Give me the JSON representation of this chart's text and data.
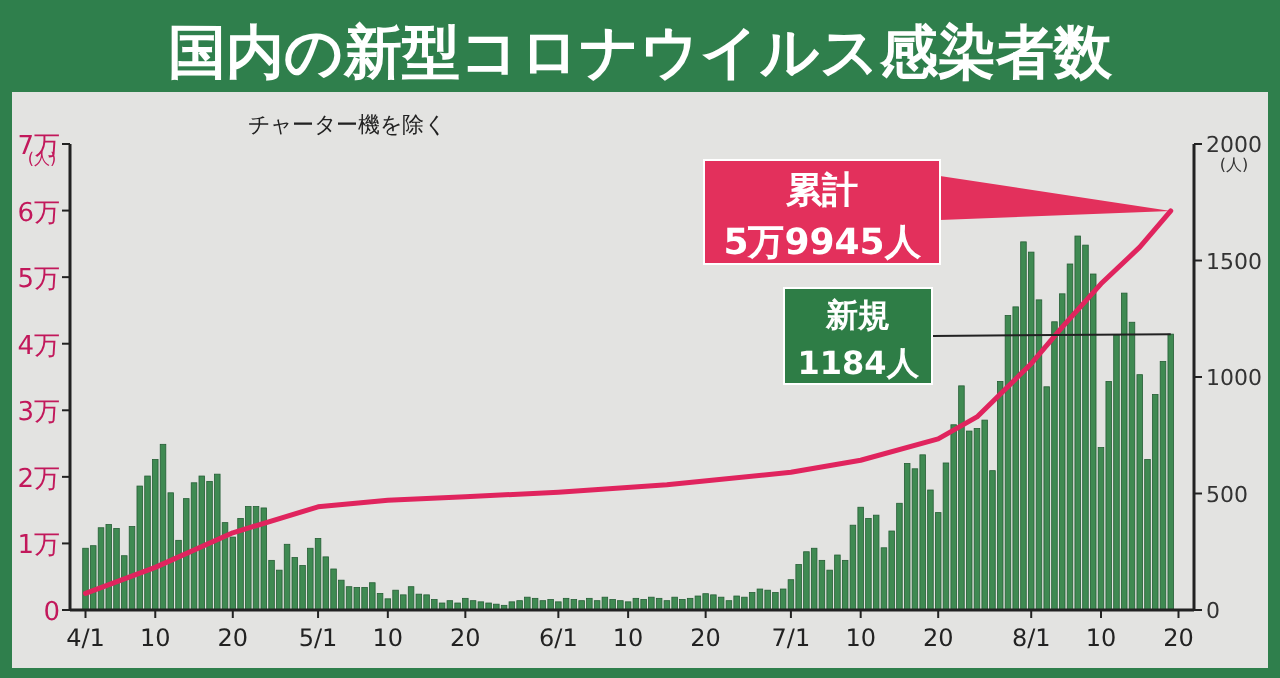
{
  "chart_data": {
    "type": "bar",
    "title": "国内の新型コロナウイルス感染者数",
    "subtitle": "チャーター機を除く",
    "ylabel": "(人)",
    "y2label": "(人)",
    "x": [
      "--04-01",
      "--04-02",
      "--04-03",
      "--04-04",
      "--04-05",
      "--04-06",
      "--04-07",
      "--04-08",
      "--04-09",
      "--04-10",
      "--04-11",
      "--04-12",
      "--04-13",
      "--04-14",
      "--04-15",
      "--04-16",
      "--04-17",
      "--04-18",
      "--04-19",
      "--04-20",
      "--04-21",
      "--04-22",
      "--04-23",
      "--04-24",
      "--04-25",
      "--04-26",
      "--04-27",
      "--04-28",
      "--04-29",
      "--04-30",
      "--05-01",
      "--05-02",
      "--05-03",
      "--05-04",
      "--05-05",
      "--05-06",
      "--05-07",
      "--05-08",
      "--05-09",
      "--05-10",
      "--05-11",
      "--05-12",
      "--05-13",
      "--05-14",
      "--05-15",
      "--05-16",
      "--05-17",
      "--05-18",
      "--05-19",
      "--05-20",
      "--05-21",
      "--05-22",
      "--05-23",
      "--05-24",
      "--05-25",
      "--05-26",
      "--05-27",
      "--05-28",
      "--05-29",
      "--05-30",
      "--05-31",
      "--06-01",
      "--06-02",
      "--06-03",
      "--06-04",
      "--06-05",
      "--06-06",
      "--06-07",
      "--06-08",
      "--06-09",
      "--06-10",
      "--06-11",
      "--06-12",
      "--06-13",
      "--06-14",
      "--06-15",
      "--06-16",
      "--06-17",
      "--06-18",
      "--06-19",
      "--06-20",
      "--06-21",
      "--06-22",
      "--06-23",
      "--06-24",
      "--06-25",
      "--06-26",
      "--06-27",
      "--06-28",
      "--06-29",
      "--06-30",
      "--07-01",
      "--07-02",
      "--07-03",
      "--07-04",
      "--07-05",
      "--07-06",
      "--07-07",
      "--07-08",
      "--07-09",
      "--07-10",
      "--07-11",
      "--07-12",
      "--07-13",
      "--07-14",
      "--07-15",
      "--07-16",
      "--07-17",
      "--07-18",
      "--07-19",
      "--07-20",
      "--07-21",
      "--07-22",
      "--07-23",
      "--07-24",
      "--07-25",
      "--07-26",
      "--07-27",
      "--07-28",
      "--07-29",
      "--07-30",
      "--07-31",
      "--08-01",
      "--08-02",
      "--08-03",
      "--08-04",
      "--08-05",
      "--08-06",
      "--08-07",
      "--08-08",
      "--08-09",
      "--08-10",
      "--08-11",
      "--08-12",
      "--08-13",
      "--08-14",
      "--08-15",
      "--08-16",
      "--08-17",
      "--08-18",
      "--08-19"
    ],
    "series": [
      {
        "axis": "y2",
        "color": "#3f8a52",
        "values": [
          265,
          276,
          353,
          367,
          350,
          233,
          358,
          532,
          575,
          646,
          711,
          503,
          299,
          478,
          546,
          575,
          552,
          583,
          375,
          313,
          393,
          444,
          444,
          438,
          213,
          171,
          282,
          225,
          191,
          265,
          307,
          228,
          176,
          128,
          100,
          97,
          97,
          117,
          71,
          48,
          85,
          65,
          100,
          68,
          65,
          45,
          30,
          40,
          30,
          50,
          40,
          35,
          30,
          25,
          20,
          35,
          40,
          55,
          50,
          40,
          45,
          35,
          50,
          45,
          40,
          50,
          40,
          55,
          45,
          40,
          35,
          50,
          45,
          55,
          50,
          40,
          55,
          45,
          50,
          60,
          70,
          65,
          55,
          40,
          60,
          55,
          75,
          90,
          85,
          75,
          90,
          130,
          195,
          250,
          265,
          213,
          171,
          236,
          213,
          364,
          441,
          393,
          407,
          267,
          339,
          458,
          629,
          606,
          666,
          515,
          418,
          631,
          795,
          962,
          768,
          779,
          815,
          598,
          981,
          1264,
          1301,
          1580,
          1536,
          1331,
          958,
          1237,
          1357,
          1485,
          1605,
          1566,
          1442,
          697,
          981,
          1180,
          1360,
          1235,
          1010,
          646,
          925,
          1067,
          1184
        ]
      },
      {
        "type": "line",
        "color": "#e0245e",
        "x": [
          "--04-01",
          "--04-10",
          "--04-20",
          "--05-01",
          "--05-10",
          "--05-20",
          "--06-01",
          "--06-15",
          "--07-01",
          "--07-10",
          "--07-20",
          "--07-25",
          "--08-01",
          "--08-05",
          "--08-10",
          "--08-15",
          "--08-19"
        ],
        "values": [
          0.25,
          0.64,
          1.16,
          1.55,
          1.65,
          1.7,
          1.77,
          1.88,
          2.07,
          2.25,
          2.57,
          2.9,
          3.7,
          4.25,
          4.9,
          5.45,
          5.9945
        ]
      }
    ],
    "xlim": [
      "--03-30",
      "--08-22"
    ],
    "xticks": [
      {
        "value": "--04-01",
        "label": "4/1"
      },
      {
        "value": "--04-10",
        "label": "10"
      },
      {
        "value": "--04-20",
        "label": "20"
      },
      {
        "value": "--05-01",
        "label": "5/1"
      },
      {
        "value": "--05-10",
        "label": "10"
      },
      {
        "value": "--05-20",
        "label": "20"
      },
      {
        "value": "--06-01",
        "label": "6/1"
      },
      {
        "value": "--06-10",
        "label": "10"
      },
      {
        "value": "--06-20",
        "label": "20"
      },
      {
        "value": "--07-01",
        "label": "7/1"
      },
      {
        "value": "--07-10",
        "label": "10"
      },
      {
        "value": "--07-20",
        "label": "20"
      },
      {
        "value": "--08-01",
        "label": "8/1"
      },
      {
        "value": "--08-10",
        "label": "10"
      },
      {
        "value": "--08-20",
        "label": "20"
      }
    ],
    "ylim": [
      0,
      7
    ],
    "yticks": [
      0,
      {
        "value": 1,
        "label": "1万"
      },
      {
        "value": 2,
        "label": "2万"
      },
      {
        "value": 3,
        "label": "3万"
      },
      {
        "value": 4,
        "label": "4万"
      },
      {
        "value": 5,
        "label": "5万"
      },
      {
        "value": 6,
        "label": "6万"
      },
      {
        "value": 7,
        "label": "7万"
      }
    ],
    "y2lim": [
      0,
      2000
    ],
    "y2ticks": [
      0,
      500,
      1000,
      1500,
      2000
    ],
    "annotations": [
      {
        "text": "累計\n5万9945人",
        "x": "--08-19",
        "y": 5.9945
      },
      {
        "text": "新規\n1184人",
        "x": "--08-19",
        "y": 4.144
      }
    ],
    "grid": false
  }
}
